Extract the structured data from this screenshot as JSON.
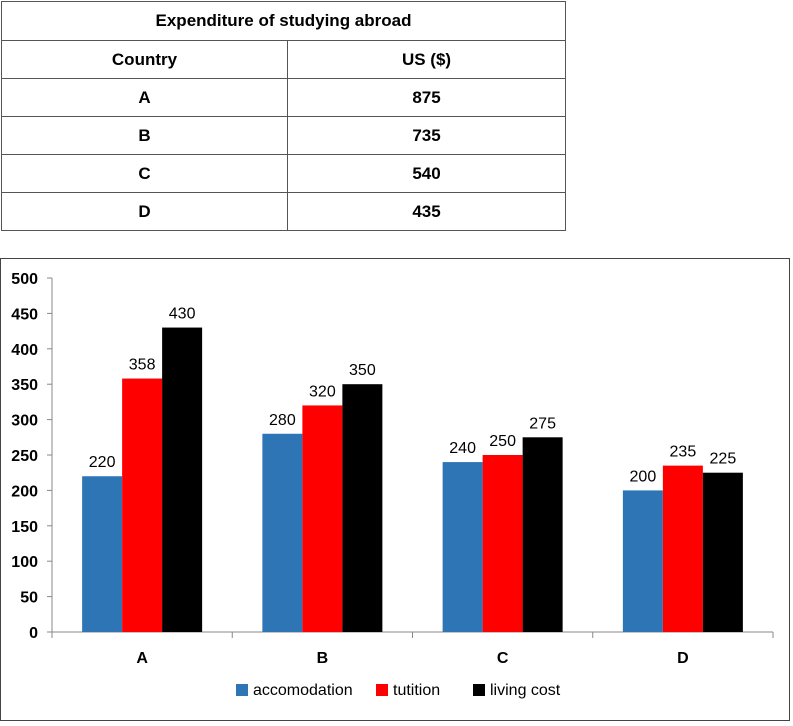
{
  "table": {
    "title": "Expenditure of studying abroad",
    "headers": [
      "Country",
      "US ($)"
    ],
    "rows": [
      {
        "country": "A",
        "value": "875"
      },
      {
        "country": "B",
        "value": "735"
      },
      {
        "country": "C",
        "value": "540"
      },
      {
        "country": "D",
        "value": "435"
      }
    ]
  },
  "chart_data": {
    "type": "bar",
    "categories": [
      "A",
      "B",
      "C",
      "D"
    ],
    "series": [
      {
        "name": "accomodation",
        "color": "#2e75b6",
        "values": [
          220,
          280,
          240,
          200
        ]
      },
      {
        "name": "tutition",
        "color": "#ff0000",
        "values": [
          358,
          320,
          250,
          235
        ]
      },
      {
        "name": "living cost",
        "color": "#000000",
        "values": [
          430,
          350,
          275,
          225
        ]
      }
    ],
    "ylim": [
      0,
      500
    ],
    "yticks": [
      0,
      50,
      100,
      150,
      200,
      250,
      300,
      350,
      400,
      450,
      500
    ],
    "legend": "bottom",
    "grid": false
  }
}
